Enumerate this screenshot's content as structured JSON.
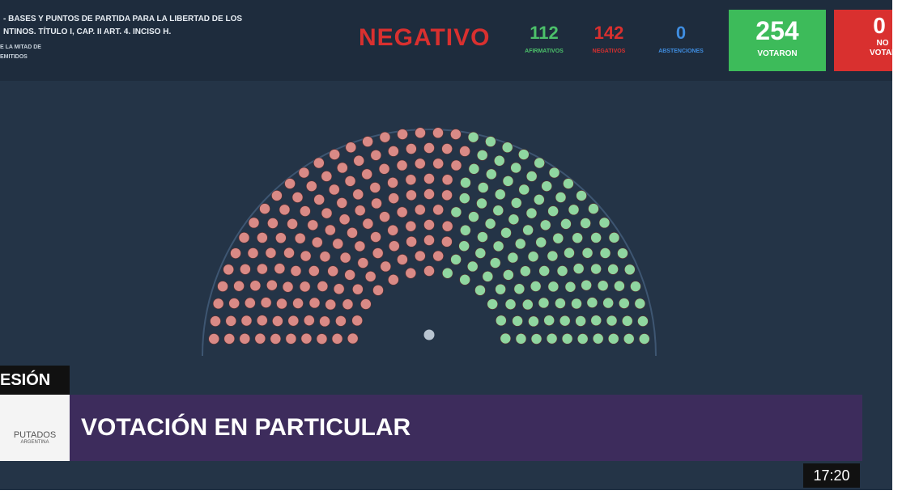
{
  "header": {
    "topic_lines": [
      "- BASES Y PUNTOS DE PARTIDA PARA LA LIBERTAD DE LOS",
      "NTINOS. TÍTULO I, CAP. II ART. 4. INCISO H."
    ],
    "rule_lines": [
      "E LA MITAD DE",
      "EMITIDOS"
    ],
    "result": "NEGATIVO",
    "affirmative": {
      "count": 112,
      "label": "AFIRMATIVOS"
    },
    "negative": {
      "count": 142,
      "label": "NEGATIVOS"
    },
    "abstention": {
      "count": 0,
      "label": "ABSTENCIONES"
    },
    "voted": {
      "count": 254,
      "label": "VOTARON"
    },
    "not_voted": {
      "count": 0,
      "label_lines": [
        "NO",
        "VOTAR"
      ]
    }
  },
  "lower_third": {
    "session": "ESIÓN",
    "title": "VOTACIÓN EN PARTICULAR",
    "logo_lines": [
      "PUTADOS",
      "ARGENTINA"
    ],
    "clock": "17:20"
  }
}
